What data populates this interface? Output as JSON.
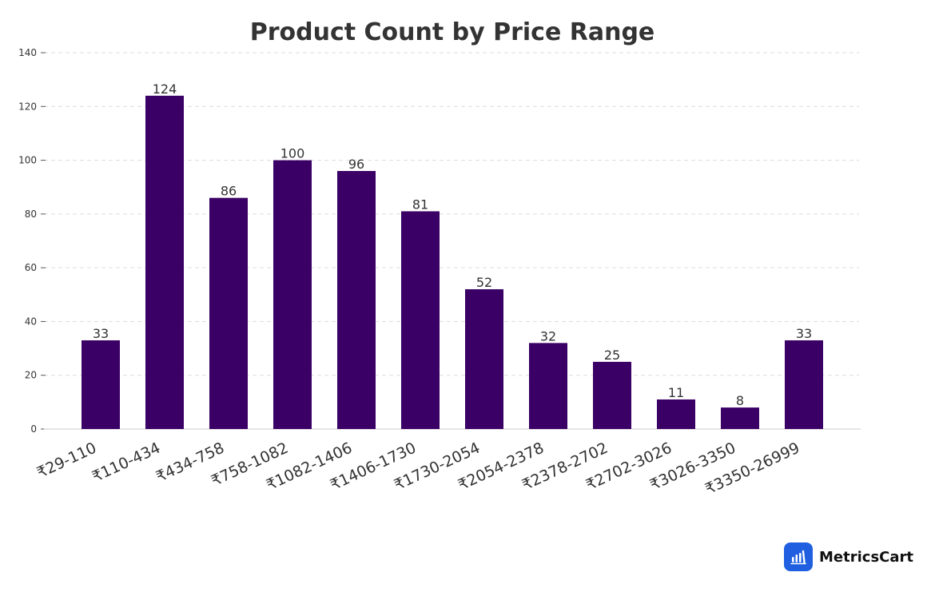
{
  "chart_data": {
    "type": "bar",
    "title": "Product Count by Price Range",
    "xlabel": "",
    "ylabel": "",
    "categories": [
      "₹29-110",
      "₹110-434",
      "₹434-758",
      "₹758-1082",
      "₹1082-1406",
      "₹1406-1730",
      "₹1730-2054",
      "₹2054-2378",
      "₹2378-2702",
      "₹2702-3026",
      "₹3026-3350",
      "₹3350-26999"
    ],
    "values": [
      33,
      124,
      86,
      100,
      96,
      81,
      52,
      32,
      25,
      11,
      8,
      33
    ],
    "ylim": [
      0,
      140
    ],
    "yticks": [
      0,
      20,
      40,
      60,
      80,
      100,
      120,
      140
    ],
    "grid": true,
    "bar_color": "#3b0066"
  },
  "brand": {
    "name": "MetricsCart",
    "icon": "chart-bars-icon",
    "icon_color": "#1f5fe0"
  }
}
